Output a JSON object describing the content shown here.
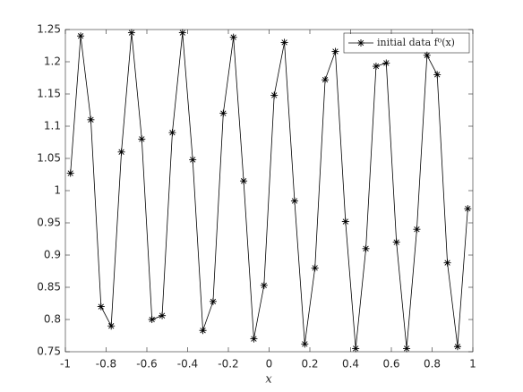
{
  "chart_data": {
    "type": "line",
    "xlabel": "x",
    "x": [
      -0.975,
      -0.925,
      -0.875,
      -0.825,
      -0.775,
      -0.725,
      -0.675,
      -0.625,
      -0.575,
      -0.525,
      -0.475,
      -0.425,
      -0.375,
      -0.325,
      -0.275,
      -0.225,
      -0.175,
      -0.125,
      -0.075,
      -0.025,
      0.025,
      0.075,
      0.125,
      0.175,
      0.225,
      0.275,
      0.325,
      0.375,
      0.425,
      0.475,
      0.525,
      0.575,
      0.625,
      0.675,
      0.725,
      0.775,
      0.825,
      0.875,
      0.925,
      0.975
    ],
    "series": [
      {
        "name": "initial data f⁰(x)",
        "color": "#000000",
        "marker": "asterisk",
        "values": [
          1.027,
          1.24,
          1.11,
          0.82,
          0.79,
          1.06,
          1.245,
          1.08,
          0.8,
          0.806,
          1.09,
          1.245,
          1.048,
          0.783,
          0.828,
          1.12,
          1.238,
          1.015,
          0.77,
          0.853,
          1.148,
          1.23,
          0.984,
          0.762,
          0.88,
          1.172,
          1.216,
          0.952,
          0.755,
          0.91,
          1.193,
          1.198,
          0.92,
          0.755,
          0.94,
          1.21,
          1.18,
          0.888,
          0.758,
          0.972
        ]
      }
    ],
    "xlim": [
      -1,
      1
    ],
    "xticks": [
      -1,
      -0.8,
      -0.6,
      -0.4,
      -0.2,
      0,
      0.2,
      0.4,
      0.6,
      0.8,
      1
    ],
    "ylim": [
      0.75,
      1.25
    ],
    "yticks": [
      0.75,
      0.8,
      0.85,
      0.9,
      0.95,
      1,
      1.05,
      1.1,
      1.15,
      1.2,
      1.25
    ],
    "grid": false,
    "legend": "northeast"
  }
}
